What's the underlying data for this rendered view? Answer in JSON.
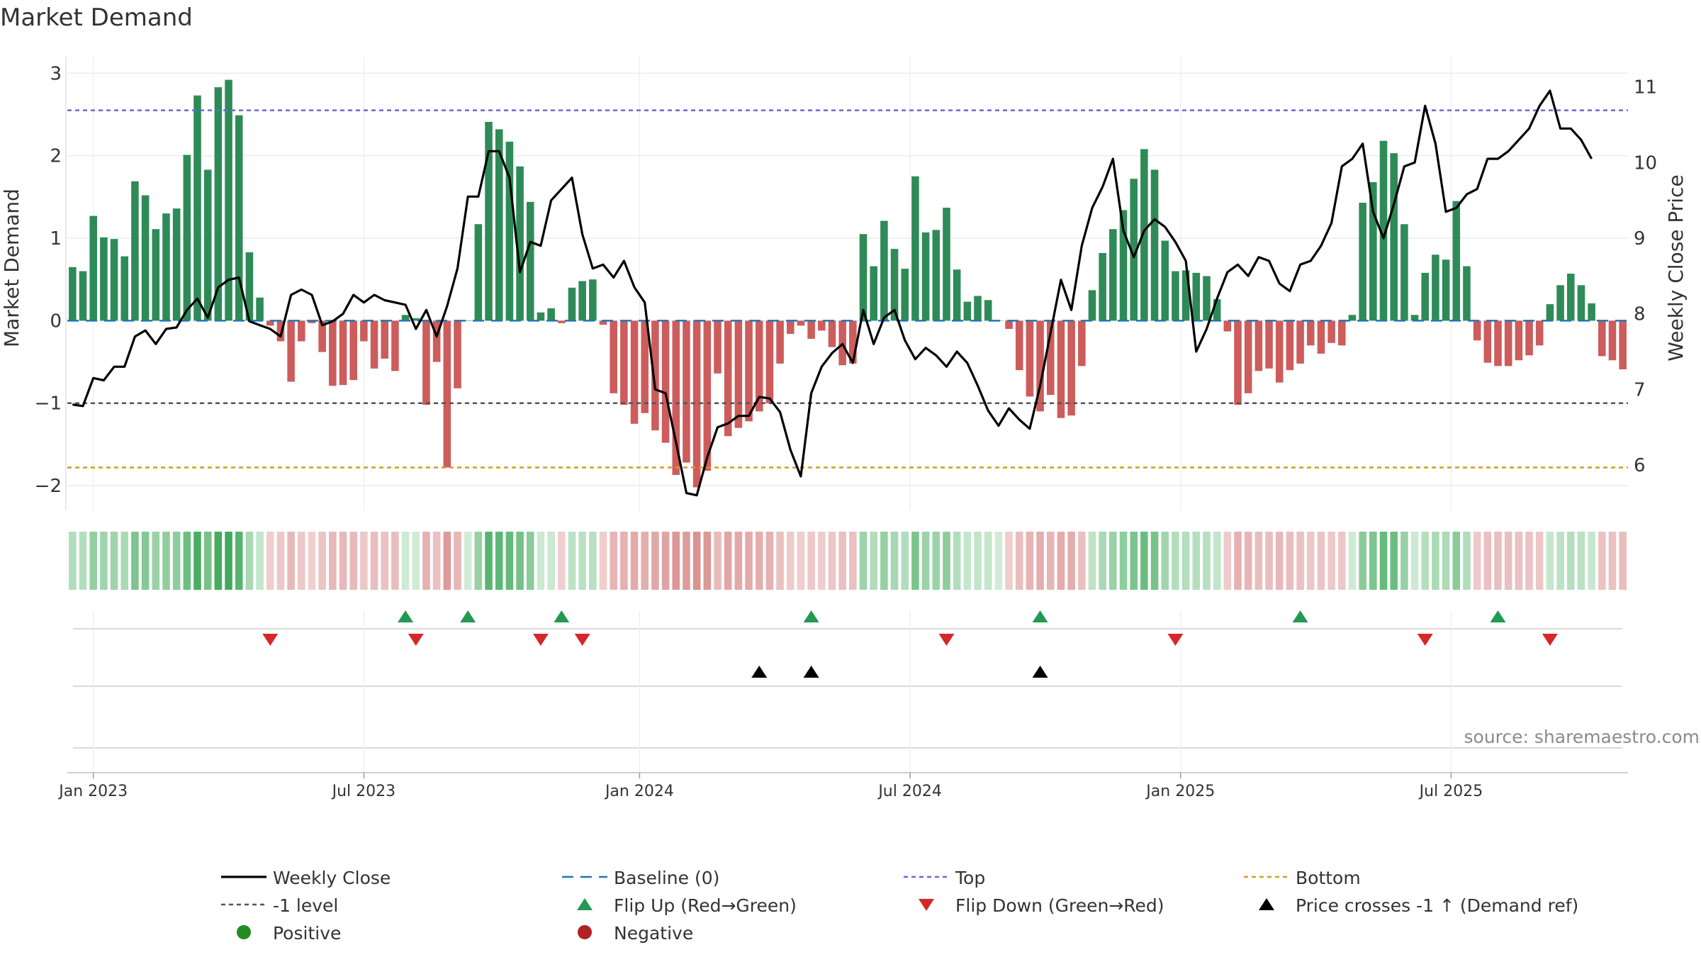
{
  "chart_data": {
    "type": "bar",
    "title": "Market Demand",
    "ylabel_left": "Market Demand",
    "ylabel_right": "Weekly Close Price",
    "source": "source: sharemaestro.com",
    "y_left_lim": [
      -2.3,
      3.2
    ],
    "y_right_lim": [
      5.4,
      11.4
    ],
    "y_left_ticks": [
      -2,
      -1,
      0,
      1,
      2,
      3
    ],
    "y_left_tick_labels": [
      "−2",
      "−1",
      "0",
      "1",
      "2",
      "3"
    ],
    "y_right_ticks": [
      6,
      7,
      8,
      9,
      10,
      11
    ],
    "x_tick_labels": [
      "Jan 2023",
      "Jul 2023",
      "Jan 2024",
      "Jul 2024",
      "Jan 2025",
      "Jul 2025"
    ],
    "x_tick_weeks": [
      2,
      28,
      54.5,
      80.5,
      106.5,
      132.5
    ],
    "levels": {
      "top": 2.55,
      "minus_one": -1,
      "bottom": -1.78,
      "baseline": 0
    },
    "colors": {
      "positive": "#2e8b57",
      "negative": "#cd5c5c",
      "price": "#000000",
      "top": "#6a6ad6",
      "bottom": "#d99a1b",
      "minus_one": "#555555",
      "baseline": "#1f77b4",
      "flip_up": "#229954",
      "flip_down": "#d62728",
      "cross": "#000000"
    },
    "series": [
      {
        "name": "Market Demand",
        "values": [
          0.65,
          0.6,
          1.27,
          1.01,
          0.99,
          0.78,
          1.69,
          1.52,
          1.11,
          1.3,
          1.36,
          2.01,
          2.73,
          1.83,
          2.83,
          2.92,
          2.49,
          0.83,
          0.28,
          -0.06,
          -0.25,
          -0.74,
          -0.25,
          -0.03,
          -0.38,
          -0.79,
          -0.78,
          -0.72,
          -0.25,
          -0.58,
          -0.46,
          -0.61,
          0.07,
          0.03,
          -1.02,
          -0.5,
          -1.78,
          -0.82,
          0,
          1.17,
          2.41,
          2.32,
          2.17,
          1.87,
          1.44,
          0.1,
          0.15,
          -0.03,
          0.4,
          0.48,
          0.5,
          -0.05,
          -0.88,
          -1.02,
          -1.25,
          -1.12,
          -1.33,
          -1.48,
          -1.87,
          -1.72,
          -2.02,
          -1.82,
          -0.64,
          -1.4,
          -1.3,
          -1.22,
          -1.1,
          -1.0,
          -0.52,
          -0.16,
          -0.06,
          -0.22,
          -0.12,
          -0.32,
          -0.54,
          -0.52,
          1.05,
          0.66,
          1.21,
          0.87,
          0.63,
          1.75,
          1.07,
          1.1,
          1.37,
          0.62,
          0.23,
          0.3,
          0.25,
          0,
          -0.1,
          -0.6,
          -0.92,
          -1.1,
          -0.9,
          -1.18,
          -1.15,
          -0.55,
          0.37,
          0.82,
          1.11,
          1.34,
          1.72,
          2.08,
          1.83,
          0.97,
          0.6,
          0.61,
          0.58,
          0.54,
          0.26,
          -0.13,
          -1.02,
          -0.88,
          -0.61,
          -0.58,
          -0.75,
          -0.6,
          -0.52,
          -0.3,
          -0.4,
          -0.27,
          -0.3,
          0.07,
          1.43,
          1.68,
          2.18,
          2.03,
          1.17,
          0.07,
          0.58,
          0.8,
          0.74,
          1.45,
          0.66,
          -0.24,
          -0.51,
          -0.55,
          -0.55,
          -0.48,
          -0.42,
          -0.3,
          0.2,
          0.43,
          0.57,
          0.43,
          0.21,
          -0.43,
          -0.48,
          -0.59
        ]
      },
      {
        "name": "Weekly Close",
        "values": [
          6.8,
          6.78,
          7.15,
          7.12,
          7.3,
          7.3,
          7.7,
          7.78,
          7.6,
          7.8,
          7.82,
          8.05,
          8.2,
          7.95,
          8.35,
          8.45,
          8.48,
          7.9,
          7.85,
          7.8,
          7.7,
          8.25,
          8.32,
          8.25,
          7.85,
          7.9,
          8.0,
          8.25,
          8.15,
          8.25,
          8.18,
          8.15,
          8.12,
          7.8,
          8.05,
          7.7,
          8.1,
          8.6,
          9.55,
          9.55,
          10.15,
          10.15,
          9.8,
          8.55,
          8.95,
          8.9,
          9.5,
          9.65,
          9.8,
          9.05,
          8.6,
          8.65,
          8.48,
          8.7,
          8.35,
          8.15,
          7.0,
          6.95,
          6.3,
          5.63,
          5.6,
          6.1,
          6.5,
          6.55,
          6.65,
          6.65,
          6.9,
          6.88,
          6.7,
          6.2,
          5.85,
          6.95,
          7.3,
          7.48,
          7.6,
          7.35,
          8.05,
          7.6,
          7.95,
          8.05,
          7.65,
          7.4,
          7.55,
          7.45,
          7.3,
          7.5,
          7.35,
          7.05,
          6.72,
          6.52,
          6.75,
          6.6,
          6.48,
          7.05,
          7.75,
          8.45,
          8.05,
          8.9,
          9.4,
          9.68,
          10.05,
          9.1,
          8.75,
          9.1,
          9.25,
          9.15,
          8.95,
          8.7,
          7.5,
          7.8,
          8.2,
          8.55,
          8.65,
          8.5,
          8.75,
          8.7,
          8.4,
          8.3,
          8.65,
          8.7,
          8.9,
          9.2,
          9.95,
          10.05,
          10.25,
          9.35,
          9.0,
          9.45,
          9.95,
          10.0,
          10.75,
          10.25,
          9.35,
          9.4,
          9.58,
          9.65,
          10.05,
          10.05,
          10.15,
          10.3,
          10.45,
          10.75,
          10.95,
          10.45,
          10.45,
          10.3,
          10.05
        ]
      },
      {
        "name": "Flip Up (Red→Green)",
        "weeks": [
          32,
          38,
          47,
          71,
          93,
          118,
          137
        ]
      },
      {
        "name": "Flip Down (Green→Red)",
        "weeks": [
          19,
          33,
          45,
          49,
          84,
          106,
          130,
          142
        ]
      },
      {
        "name": "Price crosses -1 ↑ (Demand ref)",
        "weeks": [
          66,
          71,
          93
        ]
      }
    ],
    "legend_position": "bottom",
    "legend": [
      "Weekly Close",
      "Baseline (0)",
      "Top",
      "Bottom",
      "-1 level",
      "Flip Up (Red→Green)",
      "Flip Down (Green→Red)",
      "Price crosses -1 ↑ (Demand ref)",
      "Positive",
      "Negative"
    ]
  }
}
